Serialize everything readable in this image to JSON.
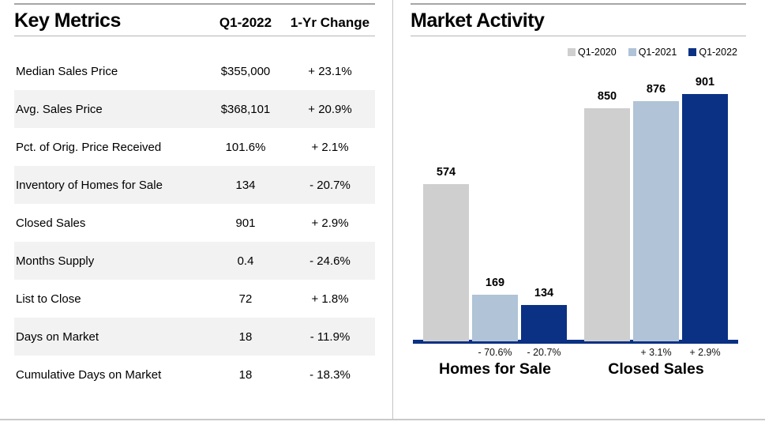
{
  "colors": {
    "navy": "#0a3183",
    "light_blue": "#b0c3d7",
    "bar_gray": "#cfcfcf",
    "row_alt": "#f2f2f2",
    "rule_gray": "#a6a6a6"
  },
  "key_metrics": {
    "title": "Key Metrics",
    "col_headers": {
      "value": "Q1-2022",
      "change": "1-Yr Change"
    },
    "rows": [
      {
        "label": "Median Sales Price",
        "value": "$355,000",
        "change": "+ 23.1%"
      },
      {
        "label": "Avg. Sales Price",
        "value": "$368,101",
        "change": "+ 20.9%"
      },
      {
        "label": "Pct. of Orig. Price Received",
        "value": "101.6%",
        "change": "+ 2.1%"
      },
      {
        "label": "Inventory of Homes for Sale",
        "value": "134",
        "change": "- 20.7%"
      },
      {
        "label": "Closed Sales",
        "value": "901",
        "change": "+ 2.9%"
      },
      {
        "label": "Months Supply",
        "value": "0.4",
        "change": "- 24.6%"
      },
      {
        "label": "List to Close",
        "value": "72",
        "change": "+ 1.8%"
      },
      {
        "label": "Days on Market",
        "value": "18",
        "change": "- 11.9%"
      },
      {
        "label": "Cumulative Days on Market",
        "value": "18",
        "change": "- 18.3%"
      }
    ]
  },
  "market_activity": {
    "title": "Market Activity"
  },
  "chart_data": {
    "type": "bar",
    "title": "Market Activity",
    "categories": [
      "Homes for Sale",
      "Closed Sales"
    ],
    "series": [
      {
        "name": "Q1-2020",
        "color": "#cfcfcf",
        "values": [
          574,
          850
        ],
        "pct_changes": [
          null,
          null
        ]
      },
      {
        "name": "Q1-2021",
        "color": "#b0c3d7",
        "values": [
          169,
          876
        ],
        "pct_changes": [
          "- 70.6%",
          "+ 3.1%"
        ]
      },
      {
        "name": "Q1-2022",
        "color": "#0a3183",
        "values": [
          134,
          901
        ],
        "pct_changes": [
          "- 20.7%",
          "+ 2.9%"
        ]
      }
    ],
    "ylim": [
      0,
      950
    ],
    "grid": false,
    "y_axis_visible": false,
    "value_labels": true,
    "legend_position": "top-right",
    "baseline_color": "#0a3183"
  }
}
